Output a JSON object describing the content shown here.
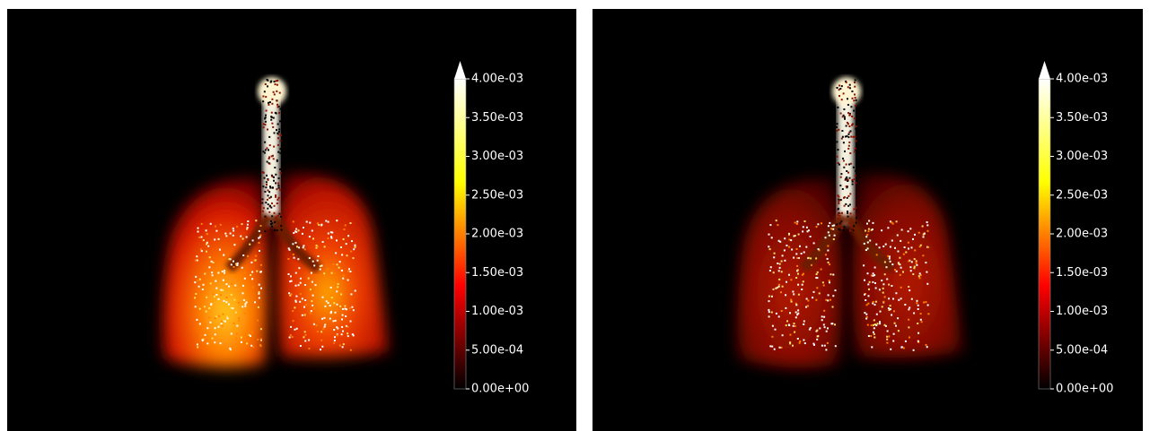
{
  "panels": [
    {
      "colorbar": {
        "range": [
          0,
          0.004
        ],
        "colormap": [
          "#000000",
          "#ff0000",
          "#ffff00",
          "#ffffff"
        ],
        "ticks": [
          {
            "value": 0.004,
            "label": "4.00e-03"
          },
          {
            "value": 0.0035,
            "label": "3.50e-03"
          },
          {
            "value": 0.003,
            "label": "3.00e-03"
          },
          {
            "value": 0.0025,
            "label": "2.50e-03"
          },
          {
            "value": 0.002,
            "label": "2.00e-03"
          },
          {
            "value": 0.0015,
            "label": "1.50e-03"
          },
          {
            "value": 0.001,
            "label": "1.00e-03"
          },
          {
            "value": 0.0005,
            "label": "5.00e-04"
          },
          {
            "value": 0,
            "label": "0.00e+00"
          }
        ]
      }
    },
    {
      "colorbar": {
        "range": [
          0,
          0.004
        ],
        "colormap": [
          "#000000",
          "#ff0000",
          "#ffff00",
          "#ffffff"
        ],
        "ticks": [
          {
            "value": 0.004,
            "label": "4.00e-03"
          },
          {
            "value": 0.0035,
            "label": "3.50e-03"
          },
          {
            "value": 0.003,
            "label": "3.00e-03"
          },
          {
            "value": 0.0025,
            "label": "2.50e-03"
          },
          {
            "value": 0.002,
            "label": "2.00e-03"
          },
          {
            "value": 0.0015,
            "label": "1.50e-03"
          },
          {
            "value": 0.001,
            "label": "1.00e-03"
          },
          {
            "value": 0.0005,
            "label": "5.00e-04"
          },
          {
            "value": 0,
            "label": "0.00e+00"
          }
        ]
      }
    }
  ]
}
